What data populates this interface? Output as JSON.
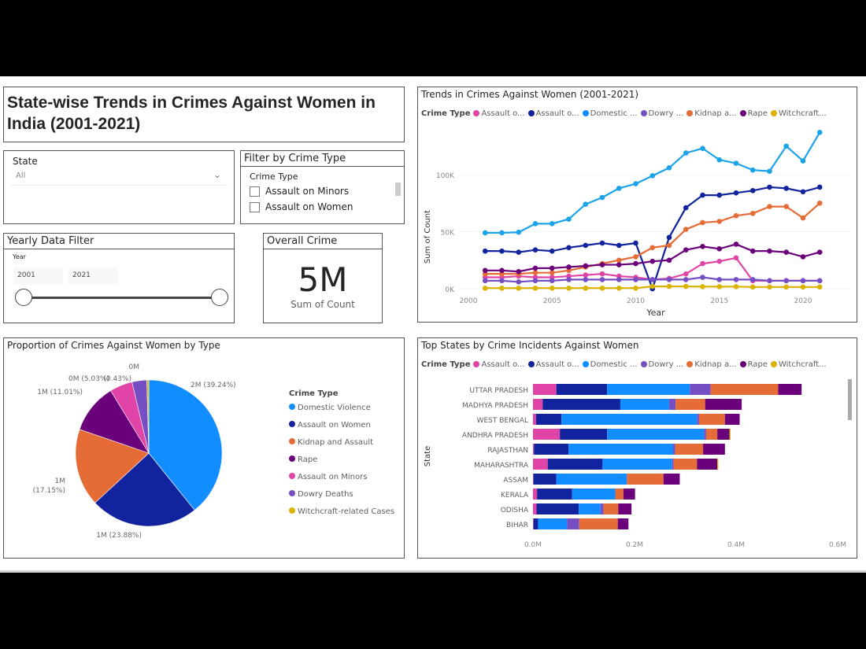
{
  "title": "State-wise Trends in Crimes Against Women in India (2001-2021)",
  "colors": {
    "Assault on Minors": "#E044A7",
    "Assault on Women": "#12239E",
    "Domestic Violence": "#118DFF",
    "Dowry Deaths": "#744EC2",
    "Kidnap and Assault": "#E66C37",
    "Rape": "#6B007B",
    "Witchcraft-related Cases": "#D9B300"
  },
  "state_filter": {
    "label": "State",
    "value": "All",
    "icon": "chevron-down-icon"
  },
  "crime_filter": {
    "title": "Filter by Crime Type",
    "label": "Crime Type",
    "options": [
      {
        "label": "Assault on Minors",
        "checked": false
      },
      {
        "label": "Assault on Women",
        "checked": false
      }
    ]
  },
  "year_filter": {
    "title": "Yearly Data Filter",
    "label": "Year",
    "from": "2001",
    "to": "2021",
    "range": [
      2001,
      2021
    ]
  },
  "kpi": {
    "title": "Overall Crime",
    "value": "5M",
    "label": "Sum of Count"
  },
  "legend": {
    "title": "Crime Type",
    "short": [
      "Assault o...",
      "Assault o...",
      "Domestic ...",
      "Dowry ...",
      "Kidnap a...",
      "Rape",
      "Witchcraft..."
    ]
  },
  "chart_data": [
    {
      "type": "line",
      "title": "Trends in Crimes Against Women (2001-2021)",
      "xlabel": "Year",
      "ylabel": "Sum of Count",
      "legend_title": "Crime Type",
      "xlim": [
        2000,
        2021
      ],
      "ylim": [
        0,
        140000
      ],
      "xticks": [
        "2000",
        "2005",
        "2010",
        "2015",
        "2020"
      ],
      "yticks": [
        "0K",
        "50K",
        "100K"
      ],
      "x": [
        2001,
        2002,
        2003,
        2004,
        2005,
        2006,
        2007,
        2008,
        2009,
        2010,
        2011,
        2012,
        2013,
        2014,
        2015,
        2016,
        2017,
        2018,
        2019,
        2020,
        2021
      ],
      "series": [
        {
          "name": "Assault on Minors",
          "values": [
            10000,
            10000,
            11000,
            10000,
            10000,
            11000,
            12000,
            13000,
            11000,
            10000,
            8000,
            9000,
            13000,
            22000,
            24000,
            27000,
            7000,
            7000,
            7000,
            7000,
            7000
          ]
        },
        {
          "name": "Assault on Women",
          "values": [
            33000,
            33000,
            32000,
            34000,
            33000,
            36000,
            38000,
            40000,
            38000,
            40000,
            0,
            45000,
            71000,
            82000,
            82000,
            84000,
            86000,
            89000,
            88000,
            85000,
            89000
          ]
        },
        {
          "name": "Domestic Violence",
          "values": [
            49000,
            49000,
            49500,
            57000,
            57000,
            61000,
            74000,
            80000,
            88000,
            92000,
            99000,
            106000,
            119000,
            123000,
            113000,
            110000,
            104000,
            103000,
            125000,
            112000,
            137000
          ]
        },
        {
          "name": "Dowry Deaths",
          "values": [
            7000,
            7000,
            6000,
            7000,
            7000,
            8000,
            8000,
            8000,
            8000,
            8000,
            8000,
            8000,
            8000,
            10000,
            8000,
            8000,
            8000,
            7000,
            7000,
            7000,
            7000
          ]
        },
        {
          "name": "Kidnap and Assault",
          "values": [
            13000,
            13000,
            13000,
            14000,
            14000,
            16000,
            19000,
            22000,
            25000,
            28000,
            36000,
            38000,
            52000,
            58000,
            59000,
            64000,
            66000,
            72000,
            72000,
            62000,
            75000
          ]
        },
        {
          "name": "Rape",
          "values": [
            16000,
            16000,
            15000,
            18000,
            18000,
            19000,
            20000,
            21000,
            21000,
            22000,
            24000,
            25000,
            34000,
            37000,
            35000,
            39000,
            33000,
            33000,
            32000,
            28000,
            32000
          ]
        },
        {
          "name": "Witchcraft-related Cases",
          "values": [
            500,
            500,
            500,
            500,
            500,
            500,
            500,
            500,
            500,
            500,
            2000,
            2000,
            2000,
            1800,
            1800,
            1800,
            1500,
            1500,
            1500,
            1500,
            1500
          ]
        }
      ]
    },
    {
      "type": "pie",
      "title": "Proportion of Crimes Against Women by Type",
      "legend_title": "Crime Type",
      "slices": [
        {
          "name": "Domestic Violence",
          "percent": 39.24,
          "label": "2M (39.24%)"
        },
        {
          "name": "Assault on Women",
          "percent": 23.88,
          "label": "1M (23.88%)"
        },
        {
          "name": "Kidnap and Assault",
          "percent": 17.15,
          "label": "1M (17.15%)"
        },
        {
          "name": "Rape",
          "percent": 11.01,
          "label": "1M (11.01%)"
        },
        {
          "name": "Assault on Minors",
          "percent": 5.03,
          "label": "0M (5.03%)"
        },
        {
          "name": "Dowry Deaths",
          "percent": 3.26,
          "label": "0M"
        },
        {
          "name": "Witchcraft-related Cases",
          "percent": 0.43,
          "label": "(0.43%)"
        }
      ]
    },
    {
      "type": "bar",
      "orientation": "horizontal",
      "stacked": true,
      "title": "Top States by Crime Incidents Against Women",
      "ylabel": "State",
      "legend_title": "Crime Type",
      "xlim": [
        0,
        0.6
      ],
      "xticks": [
        "0.0M",
        "0.2M",
        "0.4M",
        "0.6M"
      ],
      "categories": [
        "UTTAR PRADESH",
        "MADHYA PRADESH",
        "WEST BENGAL",
        "ANDHRA PRADESH",
        "RAJASTHAN",
        "MAHARASHTRA",
        "ASSAM",
        "KERALA",
        "ODISHA",
        "BIHAR"
      ],
      "series": [
        {
          "name": "Assault on Minors",
          "values": [
            0.046,
            0.019,
            0.006,
            0.053,
            0.002,
            0.029,
            0.001,
            0.008,
            0.007,
            0.001
          ]
        },
        {
          "name": "Assault on Women",
          "values": [
            0.1,
            0.153,
            0.05,
            0.093,
            0.068,
            0.108,
            0.045,
            0.069,
            0.083,
            0.009
          ]
        },
        {
          "name": "Domestic Violence",
          "values": [
            0.163,
            0.096,
            0.267,
            0.191,
            0.206,
            0.137,
            0.139,
            0.085,
            0.043,
            0.057
          ]
        },
        {
          "name": "Dowry Deaths",
          "values": [
            0.041,
            0.013,
            0.004,
            0.004,
            0.004,
            0.003,
            0.0,
            0.0,
            0.006,
            0.024
          ]
        },
        {
          "name": "Kidnap and Assault",
          "values": [
            0.133,
            0.058,
            0.051,
            0.022,
            0.055,
            0.046,
            0.072,
            0.016,
            0.029,
            0.076
          ]
        },
        {
          "name": "Rape",
          "values": [
            0.046,
            0.072,
            0.029,
            0.024,
            0.043,
            0.04,
            0.032,
            0.023,
            0.026,
            0.021
          ]
        },
        {
          "name": "Witchcraft-related Cases",
          "values": [
            0,
            0,
            0,
            0.002,
            0,
            0.002,
            0,
            0,
            0,
            0
          ]
        }
      ]
    }
  ]
}
